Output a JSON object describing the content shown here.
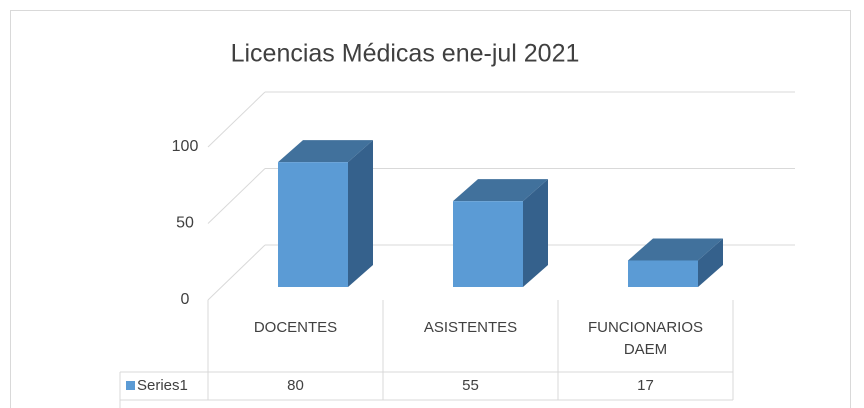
{
  "chart_data": {
    "type": "bar",
    "title": "Licencias Médicas ene-jul 2021",
    "categories": [
      "DOCENTES",
      "ASISTENTES",
      "FUNCIONARIOS DAEM"
    ],
    "series": [
      {
        "name": "Series1",
        "color": "#5b9bd5",
        "values": [
          80,
          55,
          17
        ]
      }
    ],
    "ylim": [
      0,
      100
    ],
    "yticks": [
      0,
      50,
      100
    ],
    "grid": true
  }
}
